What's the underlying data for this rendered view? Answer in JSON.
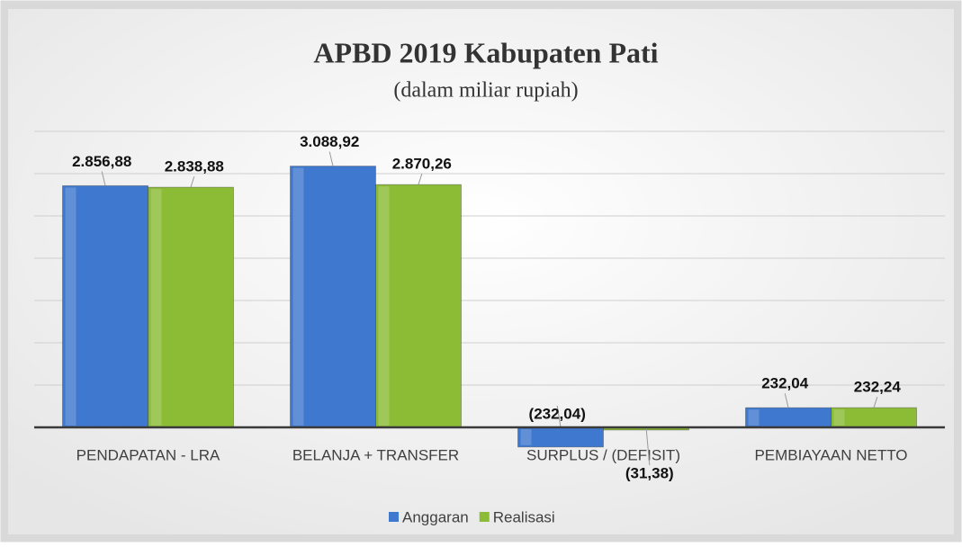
{
  "chart_data": {
    "type": "bar",
    "title": "APBD 2019 Kabupaten Pati",
    "subtitle": "(dalam miliar rupiah)",
    "categories": [
      "PENDAPATAN - LRA",
      "BELANJA + TRANSFER",
      "SURPLUS / (DEFISIT)",
      "PEMBIAYAAN NETTO"
    ],
    "series": [
      {
        "name": "Anggaran",
        "color": "#3f78cf",
        "values": [
          2856.88,
          3088.92,
          -232.04,
          232.04
        ],
        "value_labels": [
          "2.856,88",
          "3.088,92",
          "(232,04)",
          "232,04"
        ]
      },
      {
        "name": "Realisasi",
        "color": "#8cbb36",
        "values": [
          2838.88,
          2870.26,
          -31.38,
          232.24
        ],
        "value_labels": [
          "2.838,88",
          "2.870,26",
          "(31,38)",
          "232,24"
        ]
      }
    ],
    "ylim": [
      -500,
      3500
    ],
    "yticks": [
      500,
      1000,
      1500,
      2000,
      2500,
      3000,
      3500
    ],
    "ytick_labels": false,
    "grid": true,
    "legend": "bottom"
  }
}
